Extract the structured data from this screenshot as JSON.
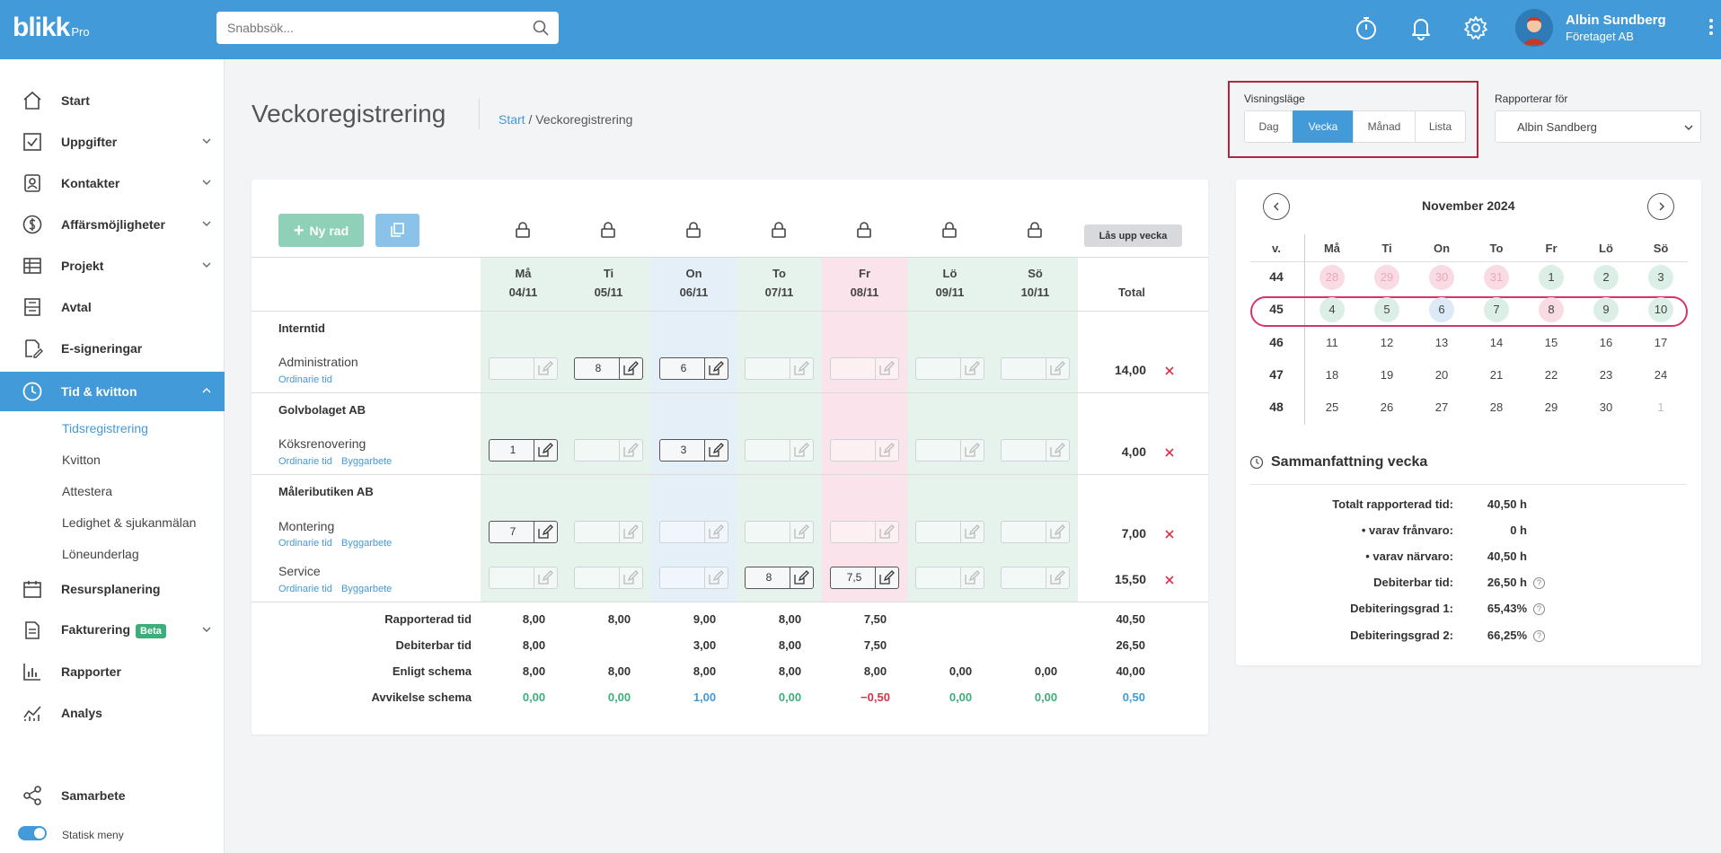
{
  "app": {
    "logo": "blikk",
    "logo_suffix": "Pro"
  },
  "search": {
    "placeholder": "Snabbsök..."
  },
  "user": {
    "name": "Albin Sundberg",
    "company": "Företaget AB"
  },
  "sidebar": {
    "items": [
      {
        "label": "Start",
        "icon": "home-icon"
      },
      {
        "label": "Uppgifter",
        "icon": "checkbox-icon"
      },
      {
        "label": "Kontakter",
        "icon": "contacts-icon"
      },
      {
        "label": "Affärsmöjligheter",
        "icon": "dollar-icon"
      },
      {
        "label": "Projekt",
        "icon": "table-icon"
      },
      {
        "label": "Avtal",
        "icon": "contract-icon"
      },
      {
        "label": "E-signeringar",
        "icon": "signature-icon"
      },
      {
        "label": "Tid & kvitton",
        "icon": "clock-icon"
      },
      {
        "label": "Resursplanering",
        "icon": "calendar-icon"
      },
      {
        "label": "Fakturering",
        "icon": "invoice-icon",
        "badge": "Beta"
      },
      {
        "label": "Rapporter",
        "icon": "report-icon"
      },
      {
        "label": "Analys",
        "icon": "analytics-icon"
      },
      {
        "label": "Samarbete",
        "icon": "share-icon"
      }
    ],
    "subitems": [
      "Tidsregistrering",
      "Kvitton",
      "Attestera",
      "Ledighet & sjukanmälan",
      "Löneunderlag"
    ],
    "toggle_label": "Statisk meny"
  },
  "page": {
    "title": "Veckoregistrering",
    "crumb_start": "Start",
    "crumb_sep": " / ",
    "crumb_current": "Veckoregistrering"
  },
  "view_mode": {
    "label": "Visningsläge",
    "options": [
      "Dag",
      "Vecka",
      "Månad",
      "Lista"
    ],
    "selected": "Vecka"
  },
  "reporting_for": {
    "label": "Rapporterar för",
    "value": "Albin Sandberg"
  },
  "toolbar": {
    "new_row": "Ny rad",
    "unlock_week": "Lås upp vecka"
  },
  "days": [
    {
      "name": "Må",
      "date": "04/11"
    },
    {
      "name": "Ti",
      "date": "05/11"
    },
    {
      "name": "On",
      "date": "06/11"
    },
    {
      "name": "To",
      "date": "07/11"
    },
    {
      "name": "Fr",
      "date": "08/11"
    },
    {
      "name": "Lö",
      "date": "09/11"
    },
    {
      "name": "Sö",
      "date": "10/11"
    }
  ],
  "total_label": "Total",
  "groups": [
    {
      "name": "Interntid",
      "rows": [
        {
          "label": "Administration",
          "tags": [
            "Ordinarie tid"
          ],
          "values": [
            "",
            "8",
            "6",
            "",
            "",
            "",
            ""
          ],
          "total": "14,00"
        }
      ]
    },
    {
      "name": "Golvbolaget AB",
      "rows": [
        {
          "label": "Köksrenovering",
          "tags": [
            "Ordinarie tid",
            "Byggarbete"
          ],
          "values": [
            "1",
            "",
            "3",
            "",
            "",
            "",
            ""
          ],
          "total": "4,00"
        }
      ]
    },
    {
      "name": "Måleributiken AB",
      "rows": [
        {
          "label": "Montering",
          "tags": [
            "Ordinarie tid",
            "Byggarbete"
          ],
          "values": [
            "7",
            "",
            "",
            "",
            "",
            "",
            ""
          ],
          "total": "7,00"
        },
        {
          "label": "Service",
          "tags": [
            "Ordinarie tid",
            "Byggarbete"
          ],
          "values": [
            "",
            "",
            "",
            "8",
            "7,5",
            "",
            ""
          ],
          "total": "15,50"
        }
      ]
    }
  ],
  "summary_rows": [
    {
      "label": "Rapporterad tid",
      "values": [
        "8,00",
        "8,00",
        "9,00",
        "8,00",
        "7,50",
        "",
        ""
      ],
      "total": "40,50"
    },
    {
      "label": "Debiterbar tid",
      "values": [
        "8,00",
        "",
        "3,00",
        "8,00",
        "7,50",
        "",
        ""
      ],
      "total": "26,50"
    },
    {
      "label": "Enligt schema",
      "values": [
        "8,00",
        "8,00",
        "8,00",
        "8,00",
        "8,00",
        "0,00",
        "0,00"
      ],
      "total": "40,00"
    },
    {
      "label": "Avvikelse schema",
      "values": [
        "0,00",
        "0,00",
        "1,00",
        "0,00",
        "−0,50",
        "0,00",
        "0,00"
      ],
      "total": "0,50"
    }
  ],
  "calendar": {
    "title": "November 2024",
    "week_header": "v.",
    "weekday_headers": [
      "Må",
      "Ti",
      "On",
      "To",
      "Fr",
      "Lö",
      "Sö"
    ],
    "weeks": [
      {
        "week": "44",
        "days": [
          "28",
          "29",
          "30",
          "31",
          "1",
          "2",
          "3"
        ]
      },
      {
        "week": "45",
        "days": [
          "4",
          "5",
          "6",
          "7",
          "8",
          "9",
          "10"
        ]
      },
      {
        "week": "46",
        "days": [
          "11",
          "12",
          "13",
          "14",
          "15",
          "16",
          "17"
        ]
      },
      {
        "week": "47",
        "days": [
          "18",
          "19",
          "20",
          "21",
          "22",
          "23",
          "24"
        ]
      },
      {
        "week": "48",
        "days": [
          "25",
          "26",
          "27",
          "28",
          "29",
          "30",
          "1"
        ]
      }
    ],
    "selected_week": "45"
  },
  "week_summary": {
    "title": "Sammanfattning vecka",
    "rows": [
      {
        "label": "Totalt rapporterad tid:",
        "value": "40,50 h"
      },
      {
        "label": "varav frånvaro:",
        "value": "0 h"
      },
      {
        "label": "varav närvaro:",
        "value": "40,50 h"
      },
      {
        "label": "Debiterbar tid:",
        "value": "26,50 h"
      },
      {
        "label": "Debiteringsgrad 1:",
        "value": "65,43%"
      },
      {
        "label": "Debiteringsgrad 2:",
        "value": "66,25%"
      }
    ]
  },
  "colors": {
    "brand": "#429ad9",
    "green": "#3cae7a",
    "red": "#d6334a",
    "highlight": "#b4263d"
  }
}
